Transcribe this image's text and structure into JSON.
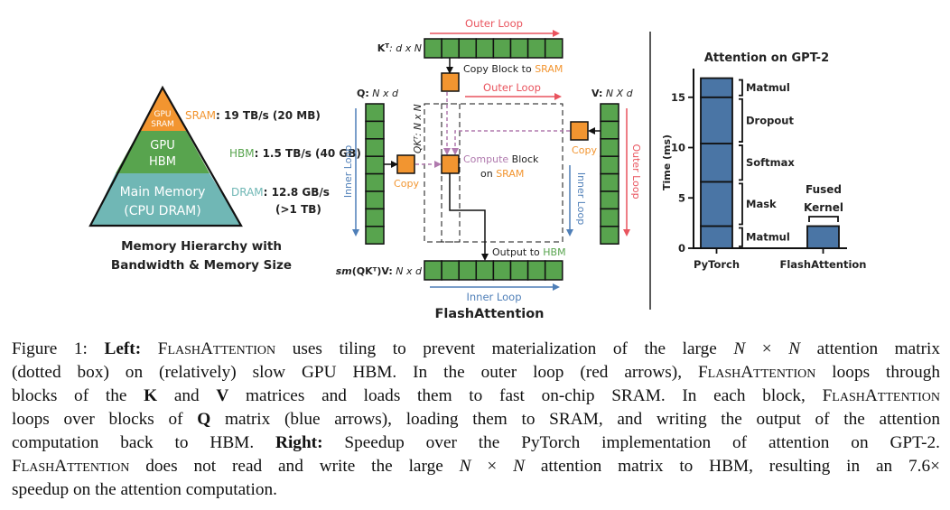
{
  "colors": {
    "orange": "#F29530",
    "green": "#58A44E",
    "teal": "#70B7B5",
    "red": "#E9545E",
    "blue": "#4F7FB8",
    "purple": "#B07AAE",
    "bar": "#4A75A5"
  },
  "pyramid": {
    "tiers": [
      {
        "line1": "GPU",
        "line2": "SRAM"
      },
      {
        "line1": "GPU",
        "line2": "HBM"
      },
      {
        "line1": "Main Memory",
        "line2": "(CPU DRAM)"
      }
    ],
    "labels": [
      {
        "name": "SRAM",
        "value": ": 19 TB/s (20 MB)"
      },
      {
        "name": "HBM",
        "value": ": 1.5 TB/s (40 GB)"
      },
      {
        "name": "DRAM",
        "value": ": 12.8 GB/s",
        "extra": "(>1 TB)"
      }
    ],
    "caption_line1": "Memory Hierarchy with",
    "caption_line2": "Bandwidth & Memory Size"
  },
  "flash": {
    "outer_loop": "Outer Loop",
    "inner_loop": "Inner Loop",
    "kt_label_bold": "K",
    "kt_sup": "T",
    "kt_label_rest": ": d x N",
    "q_label_bold": "Q:",
    "q_label_rest": " N x d",
    "v_label_bold": "V:",
    "v_label_rest": " N X d",
    "qk_label": "QKᵀ: N x N",
    "copy_block": "Copy Block to ",
    "sram": "SRAM",
    "copy": "Copy",
    "compute": "Compute",
    "block": " Block",
    "on": "on ",
    "output_to": "Output to ",
    "hbm": "HBM",
    "out_label_bold": "sm",
    "out_label_mid": "(QKᵀ)V:",
    "out_label_rest": " N x d",
    "title": "FlashAttention"
  },
  "chart_data": {
    "type": "bar",
    "title": "Attention on GPT-2",
    "ylabel": "Time (ms)",
    "xlabel": "",
    "ylim": [
      0,
      17.5
    ],
    "yticks": [
      0,
      5,
      10,
      15
    ],
    "categories": [
      "PyTorch",
      "FlashAttention"
    ],
    "stacks": [
      {
        "category": "PyTorch",
        "segments": [
          {
            "name": "Matmul",
            "value": 2.2
          },
          {
            "name": "Mask",
            "value": 4.4
          },
          {
            "name": "Softmax",
            "value": 3.8
          },
          {
            "name": "Dropout",
            "value": 4.6
          },
          {
            "name": "Matmul",
            "value": 1.9
          }
        ]
      },
      {
        "category": "FlashAttention",
        "segments": [
          {
            "name": "Fused Kernel",
            "value": 2.2
          }
        ]
      }
    ],
    "fused_label_1": "Fused",
    "fused_label_2": "Kernel",
    "grid": false,
    "legend": "none"
  },
  "caption": {
    "lines": [
      [
        {
          "t": "Figure 1: ",
          "s": "n"
        },
        {
          "t": "Left:",
          "s": "b"
        },
        {
          "t": " ",
          "s": "n"
        },
        {
          "t": "FlashAttention",
          "s": "sc"
        },
        {
          "t": " uses tiling to prevent materialization of the large ",
          "s": "n"
        },
        {
          "t": "N",
          "s": "i"
        },
        {
          "t": " × ",
          "s": "n"
        },
        {
          "t": "N",
          "s": "i"
        },
        {
          "t": " attention matrix",
          "s": "n"
        }
      ],
      [
        {
          "t": "(dotted box) on (relatively) slow GPU HBM. In the outer loop (red arrows), ",
          "s": "n"
        },
        {
          "t": "FlashAttention",
          "s": "sc"
        },
        {
          "t": " loops through",
          "s": "n"
        }
      ],
      [
        {
          "t": "blocks of the ",
          "s": "n"
        },
        {
          "t": "K",
          "s": "b"
        },
        {
          "t": " and ",
          "s": "n"
        },
        {
          "t": "V",
          "s": "b"
        },
        {
          "t": " matrices and loads them to fast on-chip SRAM. In each block, ",
          "s": "n"
        },
        {
          "t": "FlashAttention",
          "s": "sc"
        }
      ],
      [
        {
          "t": "loops over blocks of ",
          "s": "n"
        },
        {
          "t": "Q",
          "s": "b"
        },
        {
          "t": " matrix (blue arrows), loading them to SRAM, and writing the output of the attention",
          "s": "n"
        }
      ],
      [
        {
          "t": "computation back to HBM. ",
          "s": "n"
        },
        {
          "t": "Right:",
          "s": "b"
        },
        {
          "t": " Speedup over the PyTorch implementation of attention on GPT-2.",
          "s": "n"
        }
      ],
      [
        {
          "t": "FlashAttention",
          "s": "sc"
        },
        {
          "t": " does not read and write the large ",
          "s": "n"
        },
        {
          "t": "N",
          "s": "i"
        },
        {
          "t": " × ",
          "s": "n"
        },
        {
          "t": "N",
          "s": "i"
        },
        {
          "t": " attention matrix to HBM, resulting in an 7.6×",
          "s": "n"
        }
      ],
      [
        {
          "t": "speedup on the attention computation.",
          "s": "n"
        }
      ]
    ]
  }
}
